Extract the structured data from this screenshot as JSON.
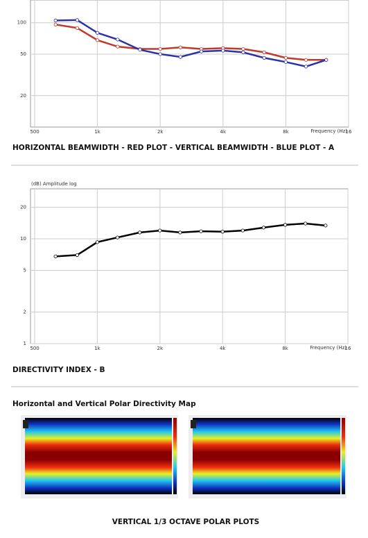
{
  "chart_data": [
    {
      "type": "line",
      "title": "HORIZONTAL BEAMWIDTH - RED PLOT - VERTICAL BEAMWIDTH - BLUE PLOT - A",
      "x_label": "Frequency (Hz)",
      "x": [
        630,
        800,
        1000,
        1250,
        1600,
        2000,
        2500,
        3150,
        4000,
        5000,
        6300,
        8000,
        10000,
        12500
      ],
      "series": [
        {
          "color": "#c0392b",
          "values": [
            96,
            89,
            68,
            59,
            56,
            56,
            58,
            56,
            57,
            56,
            52,
            46,
            44,
            44
          ]
        },
        {
          "color": "#2a32a8",
          "values": [
            105,
            106,
            80,
            69,
            55,
            50,
            47,
            53,
            54,
            52,
            46,
            42,
            38,
            44
          ]
        }
      ],
      "xlim": [
        500,
        16000
      ],
      "xlog": true,
      "xticks": [
        500,
        {
          "value": 1000,
          "label": "1k"
        },
        {
          "value": 2000,
          "label": "2k"
        },
        {
          "value": 4000,
          "label": "4k"
        },
        {
          "value": 8000,
          "label": "8k"
        },
        {
          "value": 16000,
          "label": "16"
        }
      ],
      "ylim": [
        10,
        165
      ],
      "ylog": true,
      "yticks": [
        20,
        50,
        100
      ],
      "grid": true
    },
    {
      "type": "line",
      "title": "DIRECTIVITY INDEX - B",
      "x_label": "Frequency (Hz)",
      "y_label": "(dB) Amplitude log",
      "x": [
        630,
        800,
        1000,
        1250,
        1600,
        2000,
        2500,
        3150,
        4000,
        5000,
        6300,
        8000,
        10000,
        12500
      ],
      "series": [
        {
          "color": "#000000",
          "values": [
            6.8,
            7.0,
            9.3,
            10.3,
            11.5,
            12.0,
            11.5,
            11.8,
            11.7,
            12.0,
            12.8,
            13.6,
            14.0,
            13.4
          ]
        }
      ],
      "xlim": [
        500,
        16000
      ],
      "xlog": true,
      "xticks": [
        500,
        {
          "value": 1000,
          "label": "1k"
        },
        {
          "value": 2000,
          "label": "2k"
        },
        {
          "value": 4000,
          "label": "4k"
        },
        {
          "value": 8000,
          "label": "8k"
        },
        {
          "value": 16000,
          "label": "16"
        }
      ],
      "ylim": [
        1,
        30
      ],
      "ylog": true,
      "yticks": [
        1,
        2,
        5,
        10,
        20
      ],
      "grid": true
    }
  ],
  "sections": {
    "polar_heading": "Horizontal and Vertical Polar Directivity Map",
    "polar_caption": "VERTICAL 1/3 OCTAVE POLAR PLOTS"
  }
}
